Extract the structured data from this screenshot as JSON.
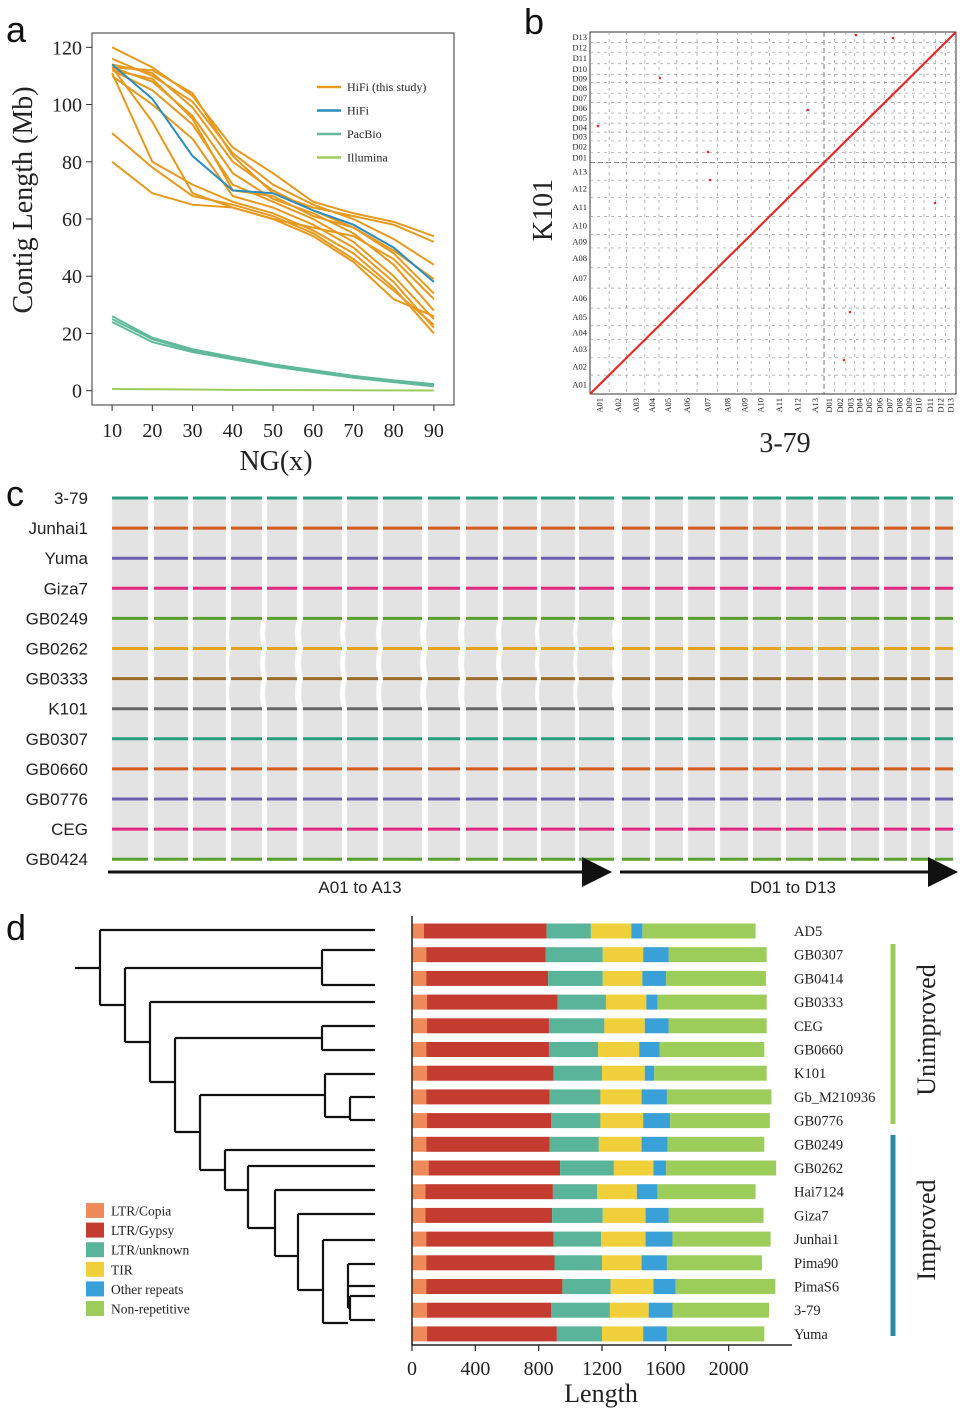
{
  "panels": {
    "a": "a",
    "b": "b",
    "c": "c",
    "d": "d"
  },
  "colors": {
    "hifi_this": "#e59a1f",
    "hifi": "#2b8cbe",
    "pacbio": "#5fb99a",
    "illumina": "#9ccc5a",
    "dot": "#e12a2a"
  },
  "chart_data": [
    {
      "id": "a",
      "type": "line",
      "xlabel": "NG(x)",
      "ylabel": "Contig Length (Mb)",
      "xlim": [
        5,
        95
      ],
      "ylim": [
        -5,
        125
      ],
      "x": [
        10,
        20,
        30,
        40,
        50,
        60,
        70,
        80,
        90
      ],
      "xticks": [
        "10",
        "20",
        "30",
        "40",
        "50",
        "60",
        "70",
        "80",
        "90"
      ],
      "yticks": [
        "0",
        "20",
        "40",
        "60",
        "80",
        "100",
        "120"
      ],
      "legend": [
        {
          "label": "HiFi (this study)",
          "color": "#e59a1f"
        },
        {
          "label": "HiFi",
          "color": "#2b8cbe"
        },
        {
          "label": "PacBio",
          "color": "#5fb99a"
        },
        {
          "label": "Illumina",
          "color": "#9ccc5a"
        }
      ],
      "series": [
        {
          "group": "HiFi (this study)",
          "values": [
            120,
            113,
            103,
            85,
            76,
            66,
            62,
            59,
            54
          ]
        },
        {
          "group": "HiFi (this study)",
          "values": [
            116,
            110,
            101,
            83,
            72,
            65,
            60,
            53,
            44
          ]
        },
        {
          "group": "HiFi (this study)",
          "values": [
            114,
            111,
            99,
            80,
            70,
            63,
            57,
            48,
            34
          ]
        },
        {
          "group": "HiFi (this study)",
          "values": [
            113,
            108,
            96,
            76,
            67,
            62,
            55,
            44,
            28
          ]
        },
        {
          "group": "HiFi (this study)",
          "values": [
            112,
            105,
            93,
            72,
            66,
            60,
            52,
            40,
            25
          ]
        },
        {
          "group": "HiFi (this study)",
          "values": [
            110,
            100,
            88,
            68,
            64,
            58,
            50,
            38,
            22
          ]
        },
        {
          "group": "HiFi (this study)",
          "values": [
            111,
            80,
            72,
            66,
            62,
            56,
            48,
            36,
            20
          ]
        },
        {
          "group": "HiFi (this study)",
          "values": [
            90,
            78,
            68,
            65,
            61,
            55,
            46,
            35,
            23
          ]
        },
        {
          "group": "HiFi (this study)",
          "values": [
            80,
            69,
            65,
            64,
            60,
            54,
            45,
            32,
            26
          ]
        },
        {
          "group": "HiFi (this study)",
          "values": [
            113,
            112,
            104,
            82,
            69,
            64,
            61,
            58,
            52
          ]
        },
        {
          "group": "HiFi (this study)",
          "values": [
            112,
            109,
            95,
            70,
            68,
            61,
            57,
            49,
            39
          ]
        },
        {
          "group": "HiFi (this study)",
          "values": [
            113,
            94,
            69,
            64,
            60,
            57,
            54,
            46,
            32
          ]
        },
        {
          "group": "HiFi",
          "values": [
            114,
            102,
            82,
            70,
            69,
            63,
            58,
            50,
            38
          ]
        },
        {
          "group": "PacBio",
          "values": [
            25,
            18,
            14,
            11.5,
            9,
            7,
            5,
            3.5,
            2
          ]
        },
        {
          "group": "PacBio",
          "values": [
            24,
            17,
            13.5,
            11,
            8.5,
            6.5,
            4.5,
            3,
            1.5
          ]
        },
        {
          "group": "PacBio",
          "values": [
            26,
            18.5,
            14.5,
            11.8,
            9.2,
            7.2,
            5.2,
            3.6,
            2.3
          ]
        },
        {
          "group": "Illumina",
          "values": [
            0.6,
            0.5,
            0.4,
            0.3,
            0.25,
            0.2,
            0.15,
            0.1,
            0.05
          ]
        }
      ]
    },
    {
      "id": "b",
      "type": "scatter",
      "xlabel": "3-79",
      "ylabel": "K101",
      "chromosomes": [
        "A01",
        "A02",
        "A03",
        "A04",
        "A05",
        "A06",
        "A07",
        "A08",
        "A09",
        "A10",
        "A11",
        "A12",
        "A13",
        "D01",
        "D02",
        "D03",
        "D04",
        "D05",
        "D06",
        "D07",
        "D08",
        "D09",
        "D10",
        "D11",
        "D12",
        "D13"
      ],
      "chrom_lengths_mb": [
        118,
        108,
        113,
        87,
        110,
        125,
        127,
        124,
        83,
        113,
        120,
        107,
        110,
        64,
        71,
        55,
        56,
        63,
        65,
        59,
        66,
        52,
        66,
        72,
        61,
        65
      ],
      "diagonal": "collinear"
    },
    {
      "id": "c",
      "type": "synteny",
      "genomes": [
        "3-79",
        "Junhai1",
        "Yuma",
        "Giza7",
        "GB0249",
        "GB0262",
        "GB0333",
        "K101",
        "GB0307",
        "GB0660",
        "GB0776",
        "CEG",
        "GB0424"
      ],
      "genome_colors": [
        "#2a9d7e",
        "#d45a1e",
        "#6d5fb0",
        "#e0287f",
        "#5a9e2e",
        "#e3a21f",
        "#9a6b2a",
        "#666666",
        "#2a9d7e",
        "#d45a1e",
        "#6d5fb0",
        "#e0287f",
        "#5a9e2e"
      ],
      "subgenome_labels": [
        "A01 to A13",
        "D01 to D13"
      ]
    },
    {
      "id": "d",
      "type": "stacked-bar",
      "xlabel": "Length",
      "xlim": [
        0,
        2400
      ],
      "xticks": [
        "0",
        "400",
        "800",
        "1200",
        "1600",
        "2000"
      ],
      "legend": [
        {
          "label": "LTR/Copia",
          "color": "#ef8a5a"
        },
        {
          "label": "LTR/Gypsy",
          "color": "#c43c30"
        },
        {
          "label": "LTR/unknown",
          "color": "#5ab49a"
        },
        {
          "label": "TIR",
          "color": "#f0d03a"
        },
        {
          "label": "Other repeats",
          "color": "#3aa0d8"
        },
        {
          "label": "Non-repetitive",
          "color": "#9ccc5a"
        }
      ],
      "categories": [
        "AD5",
        "GB0307",
        "GB0414",
        "GB0333",
        "CEG",
        "GB0660",
        "K101",
        "Gb_M210936",
        "GB0776",
        "GB0249",
        "GB0262",
        "Hai7124",
        "Giza7",
        "Junhai1",
        "Pima90",
        "PimaS6",
        "3-79",
        "Yuma"
      ],
      "series": [
        {
          "name": "LTR/Copia",
          "values": [
            75,
            90,
            90,
            95,
            95,
            90,
            95,
            90,
            95,
            90,
            105,
            85,
            85,
            90,
            90,
            90,
            95,
            95
          ]
        },
        {
          "name": "LTR/Gypsy",
          "values": [
            775,
            755,
            770,
            825,
            770,
            775,
            800,
            780,
            785,
            780,
            830,
            805,
            800,
            805,
            810,
            860,
            785,
            820
          ]
        },
        {
          "name": "LTR/unknown",
          "values": [
            280,
            360,
            345,
            305,
            350,
            310,
            305,
            320,
            310,
            310,
            340,
            280,
            320,
            300,
            300,
            305,
            370,
            285
          ]
        },
        {
          "name": "TIR",
          "values": [
            255,
            255,
            250,
            255,
            255,
            260,
            270,
            260,
            270,
            270,
            250,
            250,
            270,
            280,
            250,
            270,
            245,
            260
          ]
        },
        {
          "name": "Other repeats",
          "values": [
            70,
            160,
            150,
            70,
            150,
            130,
            60,
            160,
            170,
            165,
            80,
            130,
            145,
            170,
            160,
            140,
            150,
            150
          ]
        },
        {
          "name": "Non-repetitive",
          "values": [
            715,
            620,
            630,
            690,
            620,
            660,
            710,
            660,
            630,
            610,
            695,
            620,
            600,
            620,
            600,
            630,
            610,
            615
          ]
        }
      ],
      "groups": [
        {
          "label": "Unimproved",
          "color": "#9ccc5a",
          "from": "GB0307",
          "to": "GB0776"
        },
        {
          "label": "Improved",
          "color": "#2a8aa6",
          "from": "GB0249",
          "to": "Yuma"
        }
      ]
    }
  ]
}
